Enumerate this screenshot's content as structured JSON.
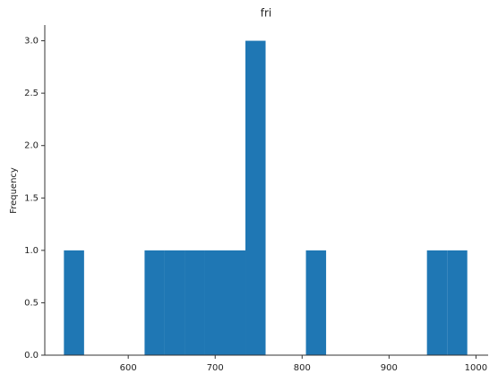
{
  "chart_data": {
    "type": "histogram",
    "title": "fri",
    "y_label": "Frequency",
    "color": "#1f77b4",
    "bins": [
      526,
      549.2,
      572.4,
      595.6,
      618.8,
      642,
      665.2,
      688.4,
      711.6,
      734.8,
      758,
      781.2,
      804.4,
      827.6,
      850.8,
      874,
      897.2,
      920.4,
      943.6,
      966.8,
      990
    ],
    "counts": [
      1,
      0,
      0,
      0,
      1,
      1,
      1,
      1,
      1,
      3,
      0,
      0,
      1,
      0,
      0,
      0,
      0,
      0,
      1,
      1
    ],
    "xlim": [
      504,
      1014
    ],
    "xticks": [
      600,
      700,
      800,
      900,
      1000
    ],
    "ylim": [
      0,
      3.15
    ],
    "yticks": [
      {
        "value": 0,
        "label": "0.0"
      },
      {
        "value": 0.5,
        "label": "0.5"
      },
      {
        "value": 1,
        "label": "1.0"
      },
      {
        "value": 1.5,
        "label": "1.5"
      },
      {
        "value": 2,
        "label": "2.0"
      },
      {
        "value": 2.5,
        "label": "2.5"
      },
      {
        "value": 3,
        "label": "3.0"
      }
    ]
  }
}
